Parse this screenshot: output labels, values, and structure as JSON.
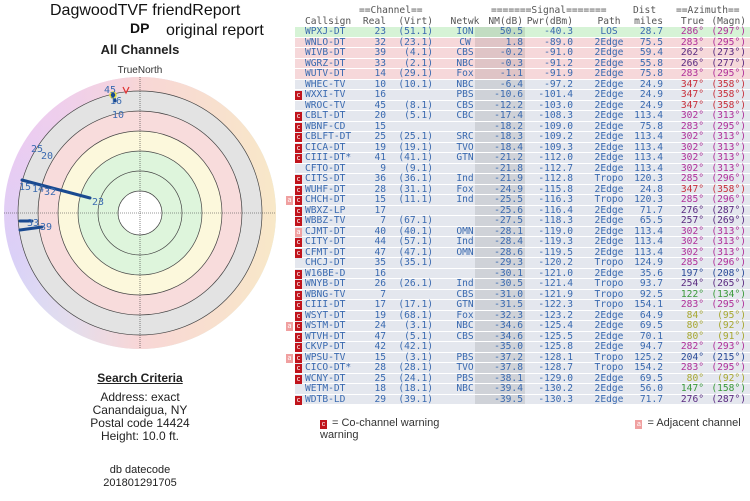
{
  "header": {
    "title": "DagwoodTVF friendReport",
    "code": "DP",
    "subtitle": "original report",
    "section": "All Channels"
  },
  "polar": {
    "north_label": "TrueNorth",
    "labels": [
      "45",
      "16",
      "10",
      "25",
      "20",
      "15",
      "14",
      "32",
      "23",
      "33",
      "39"
    ]
  },
  "search": {
    "heading": "Search Criteria",
    "address": "Address: exact",
    "city": "Canandaigua, NY",
    "postal": "Postal code 14424",
    "height": "Height: 10.0 ft.",
    "db_label": "db datecode",
    "db_code": "201801291705"
  },
  "table": {
    "group_headers": {
      "channel": "==Channel==",
      "signal": "=======Signal=======",
      "dist": "Dist",
      "azimuth": "==Azimuth=="
    },
    "columns": [
      "Callsign",
      "Real",
      "(Virt)",
      "Netwk",
      "NM(dB)",
      "Pwr(dBm)",
      "Path",
      "miles",
      "True",
      "(Magn)"
    ],
    "rows": [
      [
        "WPXJ-DT",
        "23",
        "(51.1)",
        "ION",
        "50.5",
        "-40.3",
        "LOS",
        "28.7",
        "286°",
        "(297°)",
        "",
        "good"
      ],
      [
        "WNLO-DT",
        "32",
        "(23.1)",
        "CW",
        "1.8",
        "-89.0",
        "2Edge",
        "75.5",
        "283°",
        "(295°)",
        "",
        "warn"
      ],
      [
        "WIVB-DT",
        "39",
        "(4.1)",
        "CBS",
        "-0.2",
        "-91.0",
        "2Edge",
        "59.4",
        "262°",
        "(273°)",
        "",
        "warn"
      ],
      [
        "WGRZ-DT",
        "33",
        "(2.1)",
        "NBC",
        "-0.3",
        "-91.2",
        "2Edge",
        "55.8",
        "266°",
        "(277°)",
        "",
        "warn"
      ],
      [
        "WUTV-DT",
        "14",
        "(29.1)",
        "Fox",
        "-1.1",
        "-91.9",
        "2Edge",
        "75.8",
        "283°",
        "(295°)",
        "",
        "warn"
      ],
      [
        "WHEC-TV",
        "10",
        "(10.1)",
        "NBC",
        "-6.4",
        "-97.2",
        "2Edge",
        "24.9",
        "347°",
        "(358°)",
        "",
        "poor"
      ],
      [
        "WXXI-TV",
        "16",
        "",
        "PBS",
        "-10.6",
        "-101.4",
        "2Edge",
        "24.9",
        "347°",
        "(358°)",
        "co",
        "poor"
      ],
      [
        "WROC-TV",
        "45",
        "(8.1)",
        "CBS",
        "-12.2",
        "-103.0",
        "2Edge",
        "24.9",
        "347°",
        "(358°)",
        "",
        "poor"
      ],
      [
        "CBLT-DT",
        "20",
        "(5.1)",
        "CBC",
        "-17.4",
        "-108.3",
        "2Edge",
        "113.4",
        "302°",
        "(313°)",
        "co",
        "poor"
      ],
      [
        "WBNF-CD",
        "15",
        "",
        "",
        "-18.2",
        "-109.0",
        "2Edge",
        "75.8",
        "283°",
        "(295°)",
        "co",
        "poor"
      ],
      [
        "CBLFT-DT",
        "25",
        "(25.1)",
        "SRC",
        "-18.3",
        "-109.2",
        "2Edge",
        "113.4",
        "302°",
        "(313°)",
        "co",
        "poor"
      ],
      [
        "CICA-DT",
        "19",
        "(19.1)",
        "TVO",
        "-18.4",
        "-109.3",
        "2Edge",
        "113.4",
        "302°",
        "(313°)",
        "co",
        "poor"
      ],
      [
        "CIII-DT*",
        "41",
        "(41.1)",
        "GTN",
        "-21.2",
        "-112.0",
        "2Edge",
        "113.4",
        "302°",
        "(313°)",
        "co",
        "poor"
      ],
      [
        "CFTO-DT",
        "9",
        "(9.1)",
        "",
        "-21.8",
        "-112.7",
        "2Edge",
        "113.4",
        "302°",
        "(313°)",
        "",
        "poor"
      ],
      [
        "CITS-DT",
        "36",
        "(36.1)",
        "Ind",
        "-21.9",
        "-112.8",
        "Tropo",
        "120.3",
        "285°",
        "(296°)",
        "co",
        "poor"
      ],
      [
        "WUHF-DT",
        "28",
        "(31.1)",
        "Fox",
        "-24.9",
        "-115.8",
        "2Edge",
        "24.8",
        "347°",
        "(358°)",
        "co",
        "poor"
      ],
      [
        "CHCH-DT",
        "15",
        "(11.1)",
        "Ind",
        "-25.5",
        "-116.3",
        "Tropo",
        "120.3",
        "285°",
        "(296°)",
        "both",
        "poor"
      ],
      [
        "WBXZ-LP",
        "17",
        "",
        "",
        "-25.6",
        "-116.4",
        "2Edge",
        "71.7",
        "276°",
        "(287°)",
        "co",
        "poor"
      ],
      [
        "WBBZ-TV",
        "7",
        "(67.1)",
        "",
        "-27.5",
        "-118.3",
        "2Edge",
        "65.5",
        "257°",
        "(269°)",
        "co",
        "poor"
      ],
      [
        "CJMT-DT",
        "40",
        "(40.1)",
        "OMN",
        "-28.1",
        "-119.0",
        "2Edge",
        "113.4",
        "302°",
        "(313°)",
        "adj",
        "poor"
      ],
      [
        "CITY-DT",
        "44",
        "(57.1)",
        "Ind",
        "-28.4",
        "-119.3",
        "2Edge",
        "113.4",
        "302°",
        "(313°)",
        "co",
        "poor"
      ],
      [
        "CFMT-DT",
        "47",
        "(47.1)",
        "OMN",
        "-28.6",
        "-119.5",
        "2Edge",
        "113.4",
        "302°",
        "(313°)",
        "co",
        "poor"
      ],
      [
        "CHCJ-DT",
        "35",
        "(35.1)",
        "",
        "-29.3",
        "-120.2",
        "Tropo",
        "124.9",
        "285°",
        "(296°)",
        "",
        "poor"
      ],
      [
        "W16BE-D",
        "16",
        "",
        "",
        "-30.1",
        "-121.0",
        "2Edge",
        "35.6",
        "197°",
        "(208°)",
        "co",
        "poor"
      ],
      [
        "WNYB-DT",
        "26",
        "(26.1)",
        "Ind",
        "-30.5",
        "-121.4",
        "Tropo",
        "93.7",
        "254°",
        "(265°)",
        "co",
        "poor"
      ],
      [
        "WBNG-TV",
        "7",
        "",
        "CBS",
        "-31.0",
        "-121.9",
        "Tropo",
        "92.5",
        "122°",
        "(134°)",
        "co",
        "poor"
      ],
      [
        "CIII-DT",
        "17",
        "(17.1)",
        "GTN",
        "-31.5",
        "-122.3",
        "Tropo",
        "154.1",
        "283°",
        "(295°)",
        "co",
        "poor"
      ],
      [
        "WSYT-DT",
        "19",
        "(68.1)",
        "Fox",
        "-32.3",
        "-123.2",
        "2Edge",
        "64.9",
        "84°",
        "(95°)",
        "co",
        "poor"
      ],
      [
        "WSTM-DT",
        "24",
        "(3.1)",
        "NBC",
        "-34.6",
        "-125.4",
        "2Edge",
        "69.5",
        "80°",
        "(92°)",
        "both",
        "poor"
      ],
      [
        "WTVH-DT",
        "47",
        "(5.1)",
        "CBS",
        "-34.6",
        "-125.5",
        "2Edge",
        "70.1",
        "80°",
        "(91°)",
        "co",
        "poor"
      ],
      [
        "CKVP-DT",
        "42",
        "(42.1)",
        "",
        "-35.0",
        "-125.8",
        "2Edge",
        "94.7",
        "282°",
        "(293°)",
        "co",
        "poor"
      ],
      [
        "WPSU-TV",
        "15",
        "(3.1)",
        "PBS",
        "-37.2",
        "-128.1",
        "Tropo",
        "125.2",
        "204°",
        "(215°)",
        "both",
        "poor"
      ],
      [
        "CICO-DT*",
        "28",
        "(28.1)",
        "TVO",
        "-37.8",
        "-128.7",
        "Tropo",
        "154.2",
        "283°",
        "(295°)",
        "co",
        "poor"
      ],
      [
        "WCNY-DT",
        "25",
        "(24.1)",
        "PBS",
        "-38.1",
        "-129.0",
        "2Edge",
        "69.5",
        "80°",
        "(92°)",
        "co",
        "poor"
      ],
      [
        "WETM-DT",
        "18",
        "(18.1)",
        "NBC",
        "-39.4",
        "-130.2",
        "2Edge",
        "56.0",
        "147°",
        "(158°)",
        "",
        "poor"
      ],
      [
        "WDTB-LD",
        "29",
        "(39.1)",
        "",
        "-39.5",
        "-130.3",
        "2Edge",
        "71.7",
        "276°",
        "(287°)",
        "co",
        "poor"
      ]
    ]
  },
  "legend": {
    "co": "= Co-channel warning",
    "adj": "= Adjacent channel warning",
    "co_glyph": "c",
    "adj_glyph": "a"
  },
  "colors": {
    "text": "#3a6ab0",
    "good": "#d6f3d6",
    "warn": "#f6d8da",
    "poor": "#e4e7ee",
    "nm_shade": "#cfd1d6",
    "co": "#c0141c",
    "adj": "#f0a0a0"
  }
}
